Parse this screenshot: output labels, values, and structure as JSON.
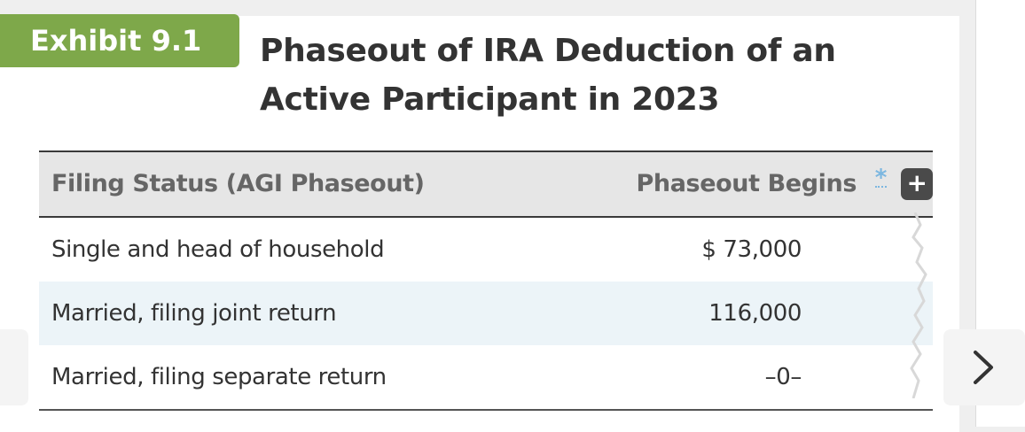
{
  "exhibit": {
    "label": "Exhibit 9.1",
    "title": "Phaseout of IRA Deduction of an Active Participant in 2023"
  },
  "table": {
    "columns": [
      "Filing Status (AGI Phaseout)",
      "Phaseout Begins"
    ],
    "footnote_marker": "*",
    "rows": [
      {
        "status": "Single and head of household",
        "phaseout": "$ 73,000"
      },
      {
        "status": "Married, filing joint return",
        "phaseout": "116,000"
      },
      {
        "status": "Married, filing separate return",
        "phaseout": "–0–"
      }
    ]
  },
  "icons": {
    "expand": "plus-icon",
    "next": "chevron-right-icon",
    "footnote": "asterisk-icon"
  },
  "colors": {
    "badge": "#7ea84a",
    "title": "#333333",
    "header_bg": "#e6e6e6",
    "alt_row_bg": "#ecf4f8",
    "footnote": "#7cb7e0"
  }
}
